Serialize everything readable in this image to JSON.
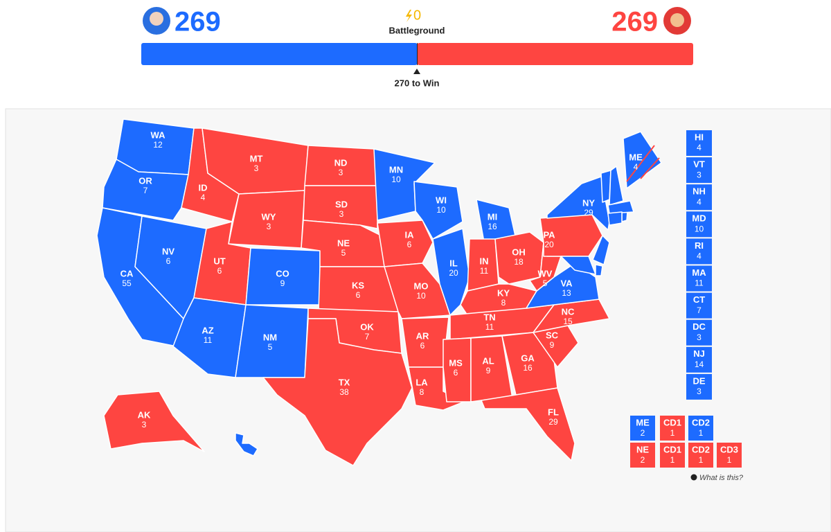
{
  "header": {
    "dem_total": 269,
    "dem_color": "#1d6bff",
    "rep_total": 269,
    "rep_color": "#fe4541",
    "battleground_count": 0,
    "battleground_label": "Battleground",
    "win_label": "270 to Win"
  },
  "states": [
    {
      "abbr": "WA",
      "votes": 12,
      "color": "#1d6bff"
    },
    {
      "abbr": "OR",
      "votes": 7,
      "color": "#1d6bff"
    },
    {
      "abbr": "CA",
      "votes": 55,
      "color": "#1d6bff"
    },
    {
      "abbr": "NV",
      "votes": 6,
      "color": "#1d6bff"
    },
    {
      "abbr": "ID",
      "votes": 4,
      "color": "#fe4541"
    },
    {
      "abbr": "MT",
      "votes": 3,
      "color": "#fe4541"
    },
    {
      "abbr": "WY",
      "votes": 3,
      "color": "#fe4541"
    },
    {
      "abbr": "UT",
      "votes": 6,
      "color": "#fe4541"
    },
    {
      "abbr": "AZ",
      "votes": 11,
      "color": "#1d6bff"
    },
    {
      "abbr": "CO",
      "votes": 9,
      "color": "#1d6bff"
    },
    {
      "abbr": "NM",
      "votes": 5,
      "color": "#1d6bff"
    },
    {
      "abbr": "ND",
      "votes": 3,
      "color": "#fe4541"
    },
    {
      "abbr": "SD",
      "votes": 3,
      "color": "#fe4541"
    },
    {
      "abbr": "NE",
      "votes": 5,
      "color": "#fe4541"
    },
    {
      "abbr": "KS",
      "votes": 6,
      "color": "#fe4541"
    },
    {
      "abbr": "OK",
      "votes": 7,
      "color": "#fe4541"
    },
    {
      "abbr": "TX",
      "votes": 38,
      "color": "#fe4541"
    },
    {
      "abbr": "MN",
      "votes": 10,
      "color": "#1d6bff"
    },
    {
      "abbr": "IA",
      "votes": 6,
      "color": "#fe4541"
    },
    {
      "abbr": "MO",
      "votes": 10,
      "color": "#fe4541"
    },
    {
      "abbr": "AR",
      "votes": 6,
      "color": "#fe4541"
    },
    {
      "abbr": "LA",
      "votes": 8,
      "color": "#fe4541"
    },
    {
      "abbr": "WI",
      "votes": 10,
      "color": "#1d6bff"
    },
    {
      "abbr": "IL",
      "votes": 20,
      "color": "#1d6bff"
    },
    {
      "abbr": "MI",
      "votes": 16,
      "color": "#1d6bff"
    },
    {
      "abbr": "IN",
      "votes": 11,
      "color": "#fe4541"
    },
    {
      "abbr": "OH",
      "votes": 18,
      "color": "#fe4541"
    },
    {
      "abbr": "KY",
      "votes": 8,
      "color": "#fe4541"
    },
    {
      "abbr": "TN",
      "votes": 11,
      "color": "#fe4541"
    },
    {
      "abbr": "MS",
      "votes": 6,
      "color": "#fe4541"
    },
    {
      "abbr": "AL",
      "votes": 9,
      "color": "#fe4541"
    },
    {
      "abbr": "GA",
      "votes": 16,
      "color": "#fe4541"
    },
    {
      "abbr": "FL",
      "votes": 29,
      "color": "#fe4541"
    },
    {
      "abbr": "SC",
      "votes": 9,
      "color": "#fe4541"
    },
    {
      "abbr": "NC",
      "votes": 15,
      "color": "#fe4541"
    },
    {
      "abbr": "VA",
      "votes": 13,
      "color": "#1d6bff"
    },
    {
      "abbr": "WV",
      "votes": 5,
      "color": "#fe4541"
    },
    {
      "abbr": "PA",
      "votes": 20,
      "color": "#fe4541"
    },
    {
      "abbr": "NY",
      "votes": 29,
      "color": "#1d6bff"
    },
    {
      "abbr": "ME",
      "votes": 4,
      "color": "#1d6bff"
    },
    {
      "abbr": "AK",
      "votes": 3,
      "color": "#fe4541"
    }
  ],
  "sidebar": [
    {
      "abbr": "HI",
      "votes": 4,
      "color": "#1d6bff"
    },
    {
      "abbr": "VT",
      "votes": 3,
      "color": "#1d6bff"
    },
    {
      "abbr": "NH",
      "votes": 4,
      "color": "#1d6bff"
    },
    {
      "abbr": "MD",
      "votes": 10,
      "color": "#1d6bff"
    },
    {
      "abbr": "RI",
      "votes": 4,
      "color": "#1d6bff"
    },
    {
      "abbr": "MA",
      "votes": 11,
      "color": "#1d6bff"
    },
    {
      "abbr": "CT",
      "votes": 7,
      "color": "#1d6bff"
    },
    {
      "abbr": "DC",
      "votes": 3,
      "color": "#1d6bff"
    },
    {
      "abbr": "NJ",
      "votes": 14,
      "color": "#1d6bff"
    },
    {
      "abbr": "DE",
      "votes": 3,
      "color": "#1d6bff"
    }
  ],
  "splits": [
    {
      "abbr": "ME",
      "votes": 2,
      "color": "#1d6bff",
      "districts": [
        {
          "name": "CD1",
          "votes": 1,
          "color": "#fe4541"
        },
        {
          "name": "CD2",
          "votes": 1,
          "color": "#1d6bff"
        }
      ]
    },
    {
      "abbr": "NE",
      "votes": 2,
      "color": "#fe4541",
      "districts": [
        {
          "name": "CD1",
          "votes": 1,
          "color": "#fe4541"
        },
        {
          "name": "CD2",
          "votes": 1,
          "color": "#fe4541"
        },
        {
          "name": "CD3",
          "votes": 1,
          "color": "#fe4541"
        }
      ]
    }
  ],
  "help_link": "What is this?"
}
